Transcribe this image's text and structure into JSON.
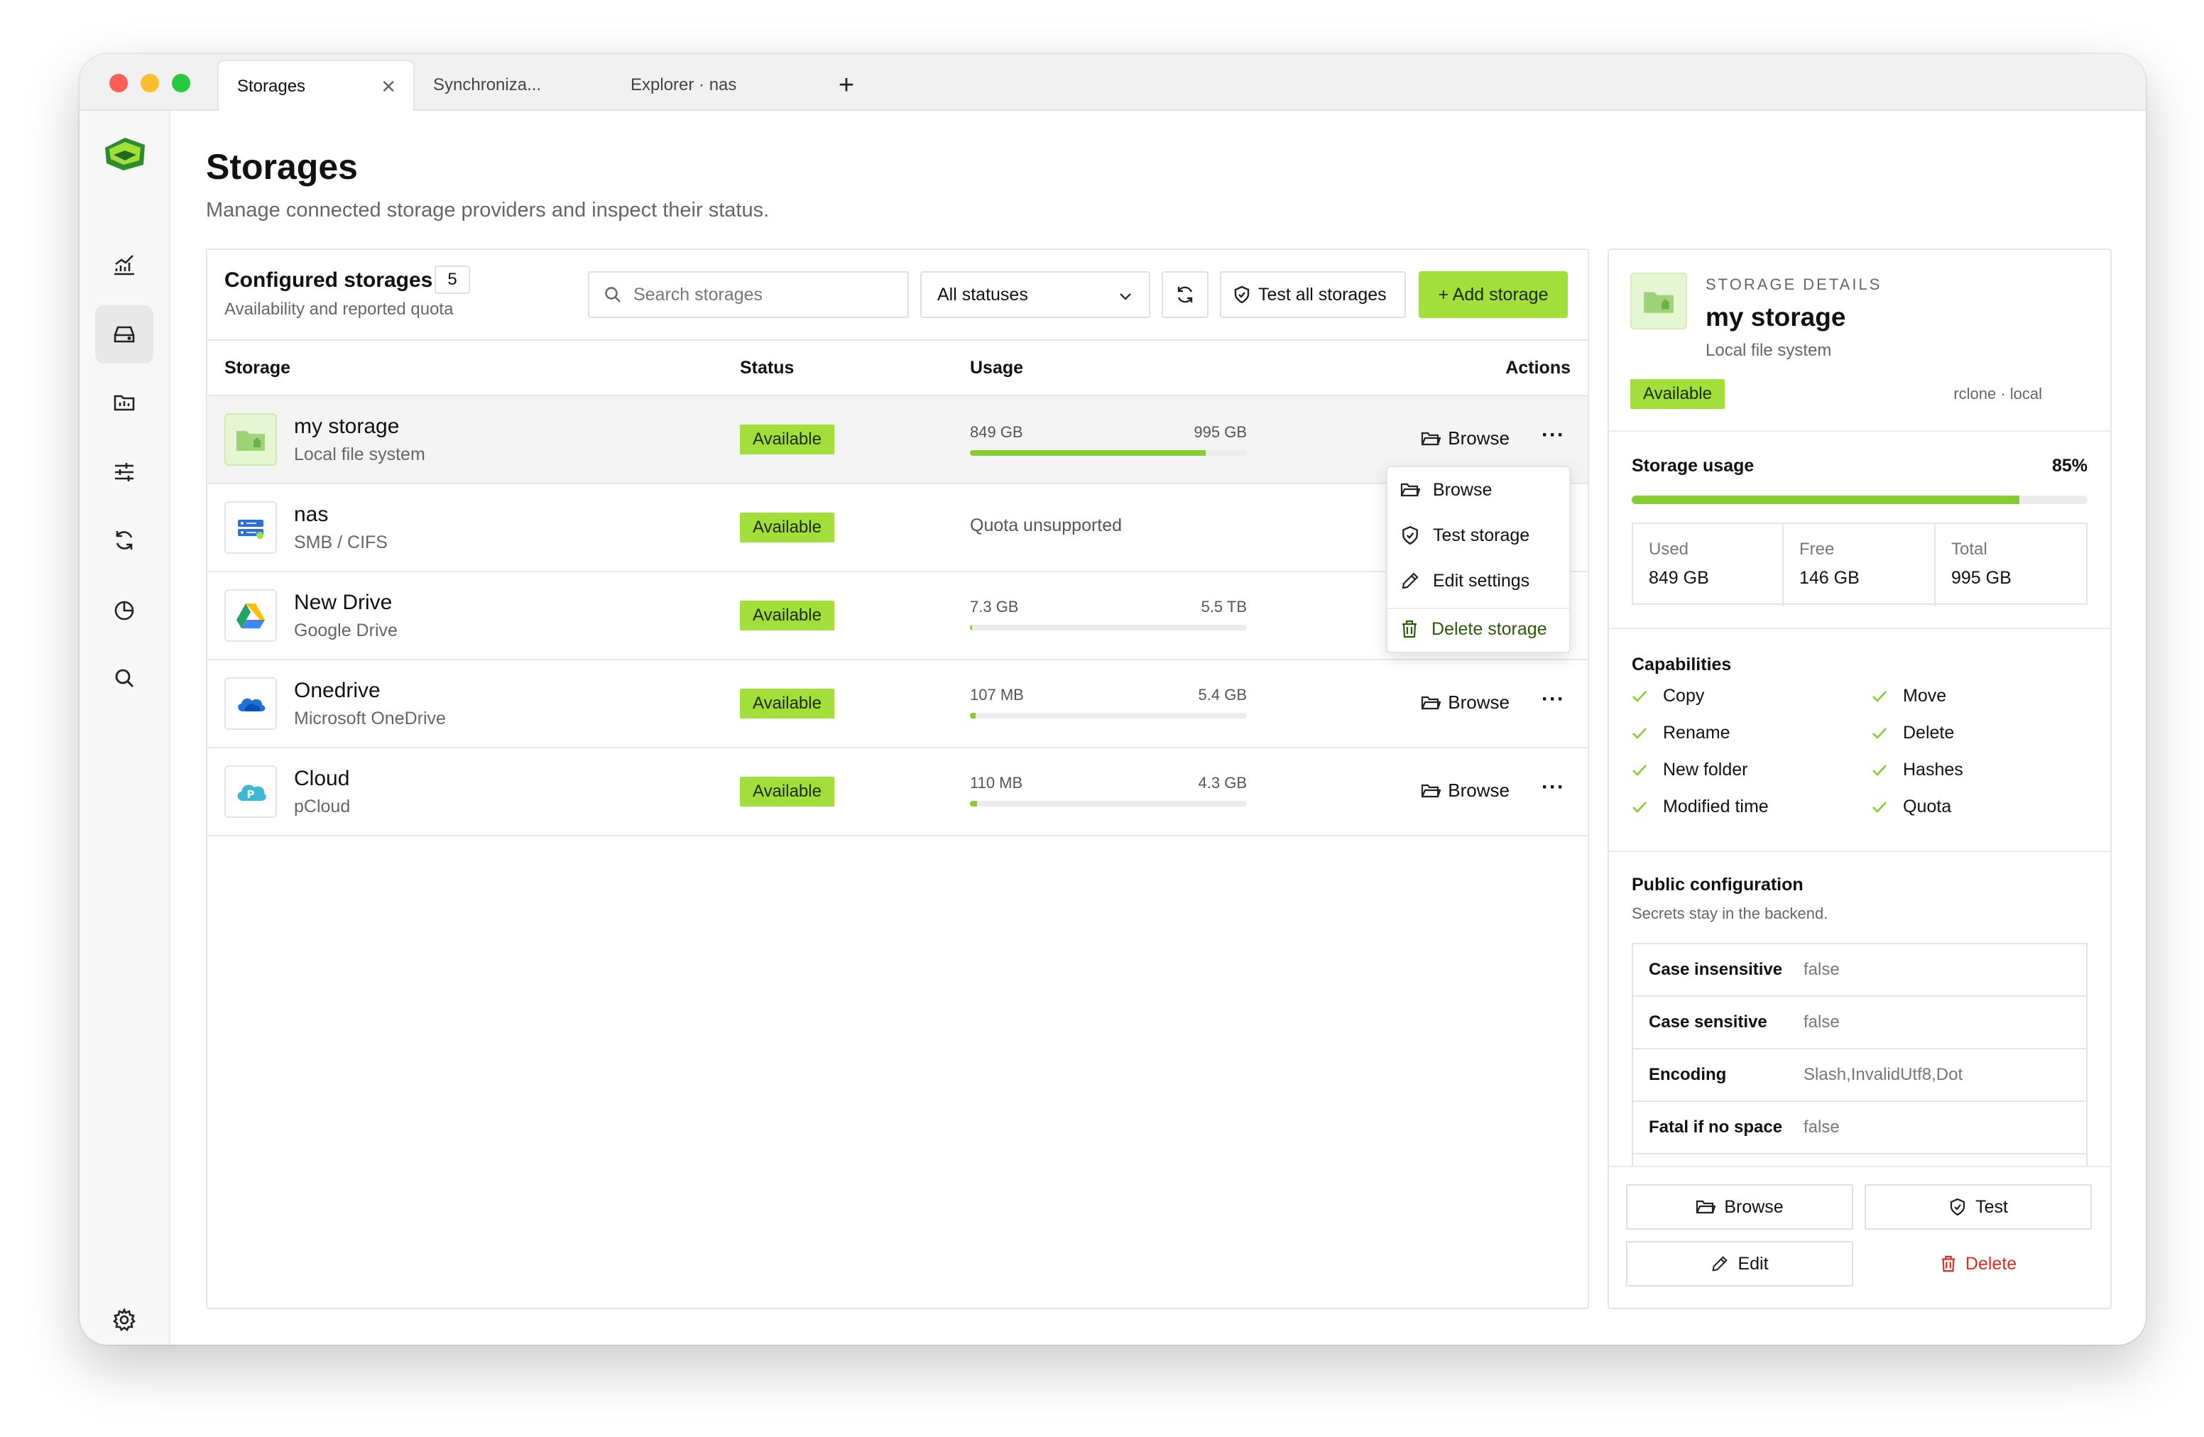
{
  "tabs": [
    {
      "label": "Storages"
    },
    {
      "label": "Synchroniza..."
    },
    {
      "label": "Explorer · nas"
    }
  ],
  "page": {
    "title": "Storages",
    "subtitle": "Manage connected storage providers and inspect their status."
  },
  "list": {
    "title": "Configured storages",
    "count": "5",
    "subtitle": "Availability and reported quota",
    "search_placeholder": "Search storages",
    "filter_value": "All statuses",
    "test_all_label": "Test all storages",
    "add_label": "+ Add storage",
    "columns": {
      "storage": "Storage",
      "status": "Status",
      "usage": "Usage",
      "actions": "Actions"
    },
    "rows": [
      {
        "name": "my storage",
        "type": "Local file system",
        "status": "Available",
        "used": "849 GB",
        "total": "995 GB",
        "fraction": 0.85,
        "action": "Browse"
      },
      {
        "name": "nas",
        "type": "SMB / CIFS",
        "status": "Available",
        "usage_text": "Quota unsupported"
      },
      {
        "name": "New Drive",
        "type": "Google Drive",
        "status": "Available",
        "used": "7.3 GB",
        "total": "5.5 TB",
        "fraction": 0.0013
      },
      {
        "name": "Onedrive",
        "type": "Microsoft OneDrive",
        "status": "Available",
        "used": "107 MB",
        "total": "5.4 GB",
        "fraction": 0.02,
        "action": "Browse"
      },
      {
        "name": "Cloud",
        "type": "pCloud",
        "status": "Available",
        "used": "110 MB",
        "total": "4.3 GB",
        "fraction": 0.025,
        "action": "Browse"
      }
    ]
  },
  "menu": {
    "browse": "Browse",
    "test": "Test storage",
    "edit": "Edit settings",
    "delete": "Delete storage"
  },
  "detail": {
    "kicker": "STORAGE DETAILS",
    "name": "my storage",
    "type": "Local file system",
    "status": "Available",
    "backend": "rclone · local",
    "usage_label": "Storage usage",
    "usage_percent": "85%",
    "usage_fraction": 0.85,
    "stats": [
      {
        "label": "Used",
        "value": "849 GB"
      },
      {
        "label": "Free",
        "value": "146 GB"
      },
      {
        "label": "Total",
        "value": "995 GB"
      }
    ],
    "capabilities_title": "Capabilities",
    "capabilities": [
      "Copy",
      "Move",
      "Rename",
      "Delete",
      "New folder",
      "Hashes",
      "Modified time",
      "Quota"
    ],
    "config_title": "Public configuration",
    "config_subtitle": "Secrets stay in the backend.",
    "config": [
      {
        "key": "Case insensitive",
        "value": "false"
      },
      {
        "key": "Case sensitive",
        "value": "false"
      },
      {
        "key": "Encoding",
        "value": "Slash,InvalidUtf8,Dot"
      },
      {
        "key": "Fatal if no space",
        "value": "false"
      }
    ],
    "buttons": {
      "browse": "Browse",
      "test": "Test",
      "edit": "Edit",
      "delete": "Delete"
    }
  },
  "colors": {
    "accent": "#a3df3a",
    "bar": "#86cc32",
    "danger": "#d93025"
  }
}
